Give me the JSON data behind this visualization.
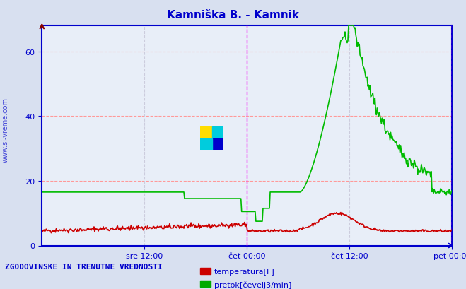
{
  "title": "Kamniška B. - Kamnik",
  "title_color": "#0000cc",
  "bg_color": "#d8e0f0",
  "plot_bg_color": "#e8eef8",
  "grid_color_h": "#ff9999",
  "grid_color_v": "#ccccdd",
  "axis_color": "#0000cc",
  "text_color": "#0000cc",
  "ylabel_text": "www.si-vreme.com",
  "watermark_text": "www.si-vreme.com",
  "bottom_title": "ZGODOVINSKE IN TRENUTNE VREDNOSTI",
  "legend": [
    {
      "label": "temperatura[F]",
      "color": "#cc0000"
    },
    {
      "label": "pretok[čevelj3/min]",
      "color": "#00aa00"
    }
  ],
  "xtick_labels": [
    "sre 12:00",
    "čet 00:00",
    "čet 12:00",
    "pet 00:00"
  ],
  "xtick_positions": [
    0.25,
    0.5,
    0.75,
    1.0
  ],
  "yticks": [
    0,
    20,
    40,
    60
  ],
  "ylim": [
    0,
    68
  ],
  "vlines": [
    0.5,
    1.0
  ],
  "vline_color": "#ff00ff",
  "n_points": 576,
  "temp_base": 4.5,
  "flow_base": 16.5
}
